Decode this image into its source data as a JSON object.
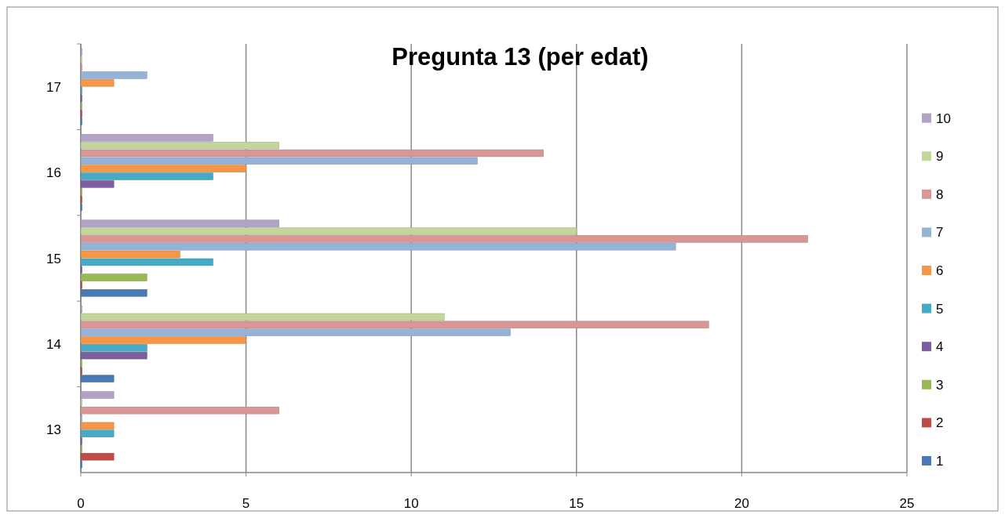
{
  "chart_data": {
    "type": "bar",
    "orientation": "horizontal",
    "title": "Pregunta 13 (per edat)",
    "categories": [
      "17",
      "16",
      "15",
      "14",
      "13"
    ],
    "xlim": [
      0,
      25
    ],
    "xticks": [
      0,
      5,
      10,
      15,
      20,
      25
    ],
    "grid": "x",
    "legend": "right",
    "series": [
      {
        "name": "1",
        "color": "#4a7ab5",
        "values": [
          0,
          0,
          2,
          1,
          0
        ]
      },
      {
        "name": "2",
        "color": "#be4b48",
        "values": [
          0,
          0,
          0,
          0,
          1
        ]
      },
      {
        "name": "3",
        "color": "#98b954",
        "values": [
          0,
          0,
          2,
          0,
          0
        ]
      },
      {
        "name": "4",
        "color": "#7d5fa0",
        "values": [
          0,
          1,
          0,
          2,
          0
        ]
      },
      {
        "name": "5",
        "color": "#46aac5",
        "values": [
          0,
          4,
          4,
          2,
          1
        ]
      },
      {
        "name": "6",
        "color": "#f79646",
        "values": [
          1,
          5,
          3,
          5,
          1
        ]
      },
      {
        "name": "7",
        "color": "#95b3d7",
        "values": [
          2,
          12,
          18,
          13,
          0
        ]
      },
      {
        "name": "8",
        "color": "#d99694",
        "values": [
          0,
          14,
          22,
          19,
          6
        ]
      },
      {
        "name": "9",
        "color": "#c3d69b",
        "values": [
          0,
          6,
          15,
          11,
          0
        ]
      },
      {
        "name": "10",
        "color": "#b3a2c7",
        "values": [
          0,
          4,
          6,
          0,
          1
        ]
      }
    ]
  }
}
